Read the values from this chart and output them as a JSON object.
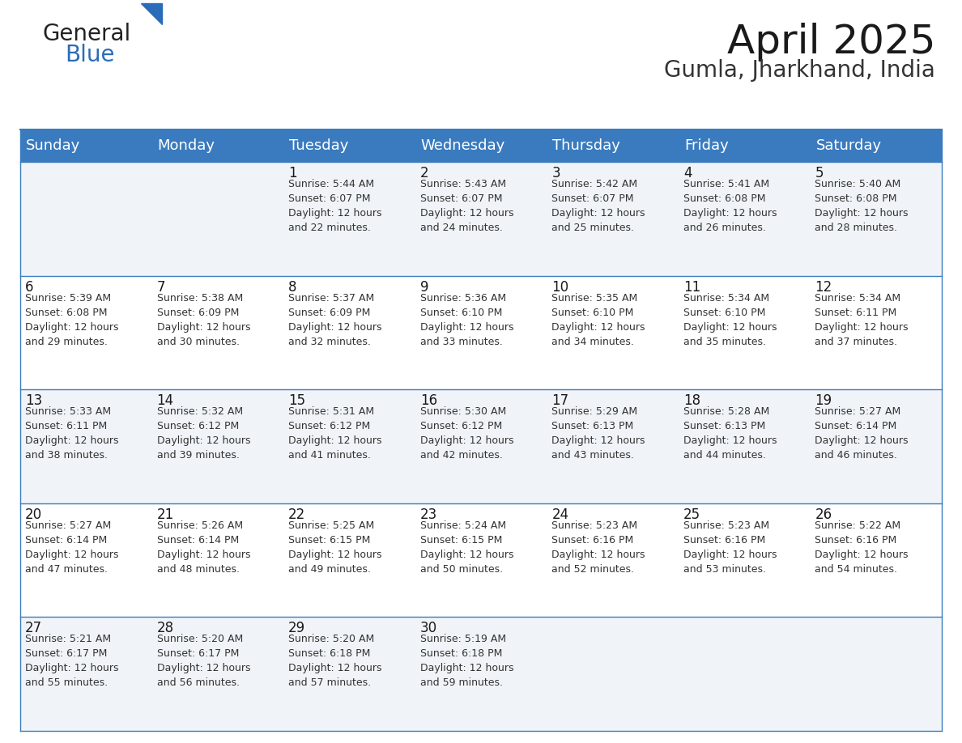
{
  "title": "April 2025",
  "subtitle": "Gumla, Jharkhand, India",
  "header_color": "#3a7bbf",
  "header_text_color": "#ffffff",
  "row_bg_odd": "#f0f4f8",
  "row_bg_even": "#ffffff",
  "border_color": "#3a7bbf",
  "text_color": "#333333",
  "day_num_color": "#1a1a1a",
  "days_of_week": [
    "Sunday",
    "Monday",
    "Tuesday",
    "Wednesday",
    "Thursday",
    "Friday",
    "Saturday"
  ],
  "weeks": [
    [
      {
        "day": "",
        "info": ""
      },
      {
        "day": "",
        "info": ""
      },
      {
        "day": "1",
        "info": "Sunrise: 5:44 AM\nSunset: 6:07 PM\nDaylight: 12 hours\nand 22 minutes."
      },
      {
        "day": "2",
        "info": "Sunrise: 5:43 AM\nSunset: 6:07 PM\nDaylight: 12 hours\nand 24 minutes."
      },
      {
        "day": "3",
        "info": "Sunrise: 5:42 AM\nSunset: 6:07 PM\nDaylight: 12 hours\nand 25 minutes."
      },
      {
        "day": "4",
        "info": "Sunrise: 5:41 AM\nSunset: 6:08 PM\nDaylight: 12 hours\nand 26 minutes."
      },
      {
        "day": "5",
        "info": "Sunrise: 5:40 AM\nSunset: 6:08 PM\nDaylight: 12 hours\nand 28 minutes."
      }
    ],
    [
      {
        "day": "6",
        "info": "Sunrise: 5:39 AM\nSunset: 6:08 PM\nDaylight: 12 hours\nand 29 minutes."
      },
      {
        "day": "7",
        "info": "Sunrise: 5:38 AM\nSunset: 6:09 PM\nDaylight: 12 hours\nand 30 minutes."
      },
      {
        "day": "8",
        "info": "Sunrise: 5:37 AM\nSunset: 6:09 PM\nDaylight: 12 hours\nand 32 minutes."
      },
      {
        "day": "9",
        "info": "Sunrise: 5:36 AM\nSunset: 6:10 PM\nDaylight: 12 hours\nand 33 minutes."
      },
      {
        "day": "10",
        "info": "Sunrise: 5:35 AM\nSunset: 6:10 PM\nDaylight: 12 hours\nand 34 minutes."
      },
      {
        "day": "11",
        "info": "Sunrise: 5:34 AM\nSunset: 6:10 PM\nDaylight: 12 hours\nand 35 minutes."
      },
      {
        "day": "12",
        "info": "Sunrise: 5:34 AM\nSunset: 6:11 PM\nDaylight: 12 hours\nand 37 minutes."
      }
    ],
    [
      {
        "day": "13",
        "info": "Sunrise: 5:33 AM\nSunset: 6:11 PM\nDaylight: 12 hours\nand 38 minutes."
      },
      {
        "day": "14",
        "info": "Sunrise: 5:32 AM\nSunset: 6:12 PM\nDaylight: 12 hours\nand 39 minutes."
      },
      {
        "day": "15",
        "info": "Sunrise: 5:31 AM\nSunset: 6:12 PM\nDaylight: 12 hours\nand 41 minutes."
      },
      {
        "day": "16",
        "info": "Sunrise: 5:30 AM\nSunset: 6:12 PM\nDaylight: 12 hours\nand 42 minutes."
      },
      {
        "day": "17",
        "info": "Sunrise: 5:29 AM\nSunset: 6:13 PM\nDaylight: 12 hours\nand 43 minutes."
      },
      {
        "day": "18",
        "info": "Sunrise: 5:28 AM\nSunset: 6:13 PM\nDaylight: 12 hours\nand 44 minutes."
      },
      {
        "day": "19",
        "info": "Sunrise: 5:27 AM\nSunset: 6:14 PM\nDaylight: 12 hours\nand 46 minutes."
      }
    ],
    [
      {
        "day": "20",
        "info": "Sunrise: 5:27 AM\nSunset: 6:14 PM\nDaylight: 12 hours\nand 47 minutes."
      },
      {
        "day": "21",
        "info": "Sunrise: 5:26 AM\nSunset: 6:14 PM\nDaylight: 12 hours\nand 48 minutes."
      },
      {
        "day": "22",
        "info": "Sunrise: 5:25 AM\nSunset: 6:15 PM\nDaylight: 12 hours\nand 49 minutes."
      },
      {
        "day": "23",
        "info": "Sunrise: 5:24 AM\nSunset: 6:15 PM\nDaylight: 12 hours\nand 50 minutes."
      },
      {
        "day": "24",
        "info": "Sunrise: 5:23 AM\nSunset: 6:16 PM\nDaylight: 12 hours\nand 52 minutes."
      },
      {
        "day": "25",
        "info": "Sunrise: 5:23 AM\nSunset: 6:16 PM\nDaylight: 12 hours\nand 53 minutes."
      },
      {
        "day": "26",
        "info": "Sunrise: 5:22 AM\nSunset: 6:16 PM\nDaylight: 12 hours\nand 54 minutes."
      }
    ],
    [
      {
        "day": "27",
        "info": "Sunrise: 5:21 AM\nSunset: 6:17 PM\nDaylight: 12 hours\nand 55 minutes."
      },
      {
        "day": "28",
        "info": "Sunrise: 5:20 AM\nSunset: 6:17 PM\nDaylight: 12 hours\nand 56 minutes."
      },
      {
        "day": "29",
        "info": "Sunrise: 5:20 AM\nSunset: 6:18 PM\nDaylight: 12 hours\nand 57 minutes."
      },
      {
        "day": "30",
        "info": "Sunrise: 5:19 AM\nSunset: 6:18 PM\nDaylight: 12 hours\nand 59 minutes."
      },
      {
        "day": "",
        "info": ""
      },
      {
        "day": "",
        "info": ""
      },
      {
        "day": "",
        "info": ""
      }
    ]
  ],
  "logo_text_general": "General",
  "logo_text_blue": "Blue",
  "logo_color_general": "#222222",
  "logo_color_blue": "#2b6cb8",
  "logo_triangle_color": "#2b6cb8",
  "title_fontsize": 36,
  "subtitle_fontsize": 20,
  "header_fontsize": 13,
  "day_num_fontsize": 12,
  "info_fontsize": 9,
  "logo_fontsize": 20
}
